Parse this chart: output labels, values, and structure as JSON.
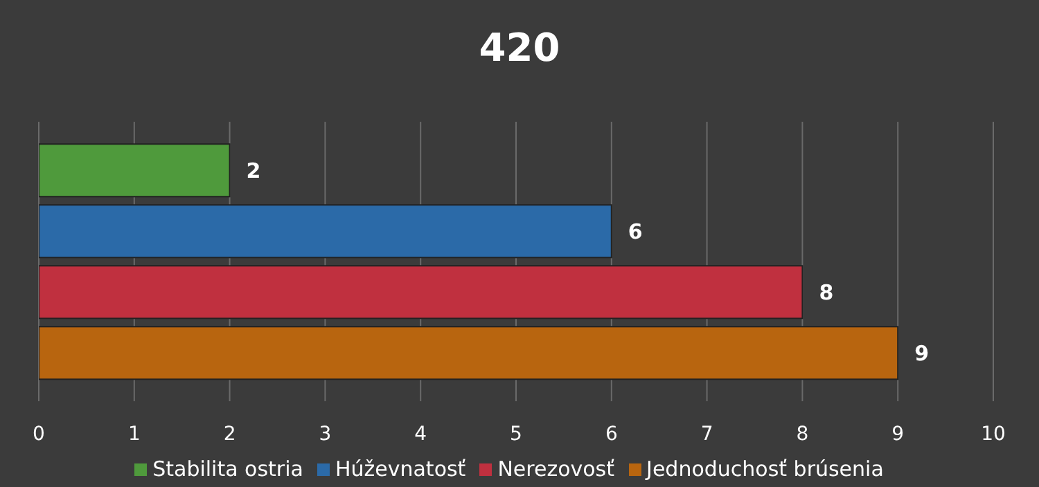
{
  "chart_data": {
    "type": "bar",
    "title": "420",
    "orientation": "horizontal",
    "categories": [
      null
    ],
    "series": [
      {
        "name": "Stabilita ostria",
        "color": "#4f9a3c",
        "values": [
          2
        ]
      },
      {
        "name": "Húževnatosť",
        "color": "#2b6aa8",
        "values": [
          6
        ]
      },
      {
        "name": "Nerezovosť",
        "color": "#c0303f",
        "values": [
          8
        ]
      },
      {
        "name": "Jednoduchosť brúsenia",
        "color": "#b8650f",
        "values": [
          9
        ]
      }
    ],
    "xlim": [
      0,
      10
    ],
    "xticks": [
      0,
      1,
      2,
      3,
      4,
      5,
      6,
      7,
      8,
      9,
      10
    ],
    "grid": "x",
    "legend": "bottom",
    "data_labels": true
  }
}
